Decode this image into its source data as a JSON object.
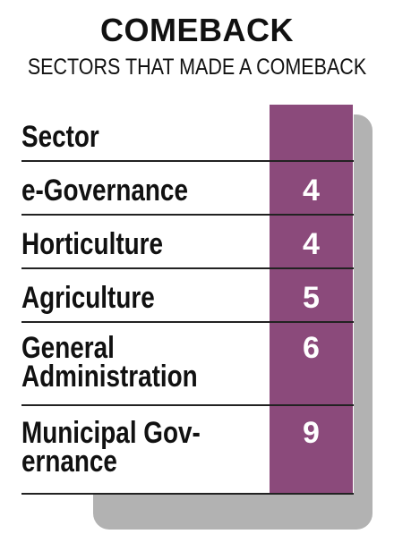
{
  "chart_data": {
    "type": "table",
    "title": "COMEBACK",
    "subtitle": "SECTORS THAT MADE A COMEBACK",
    "header": "Sector",
    "categories": [
      "e-Governance",
      "Horticulture",
      "Agriculture",
      "General\nAdministration",
      "Municipal Gov-\nernance"
    ],
    "values": [
      4,
      4,
      5,
      6,
      9
    ]
  },
  "colors": {
    "accent": "#8b4a7b",
    "shadow": "#b2b2b2"
  }
}
